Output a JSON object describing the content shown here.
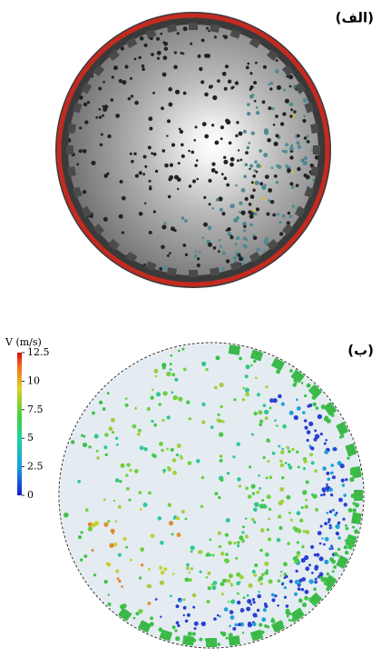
{
  "panels": [
    {
      "label": "(الف)"
    },
    {
      "label": "(ب)"
    }
  ],
  "colorbar": {
    "title": "V (m/s)",
    "lim": [
      0,
      12.5
    ],
    "ticks": [
      0,
      2.5,
      5,
      7.5,
      10,
      12.5
    ]
  }
}
